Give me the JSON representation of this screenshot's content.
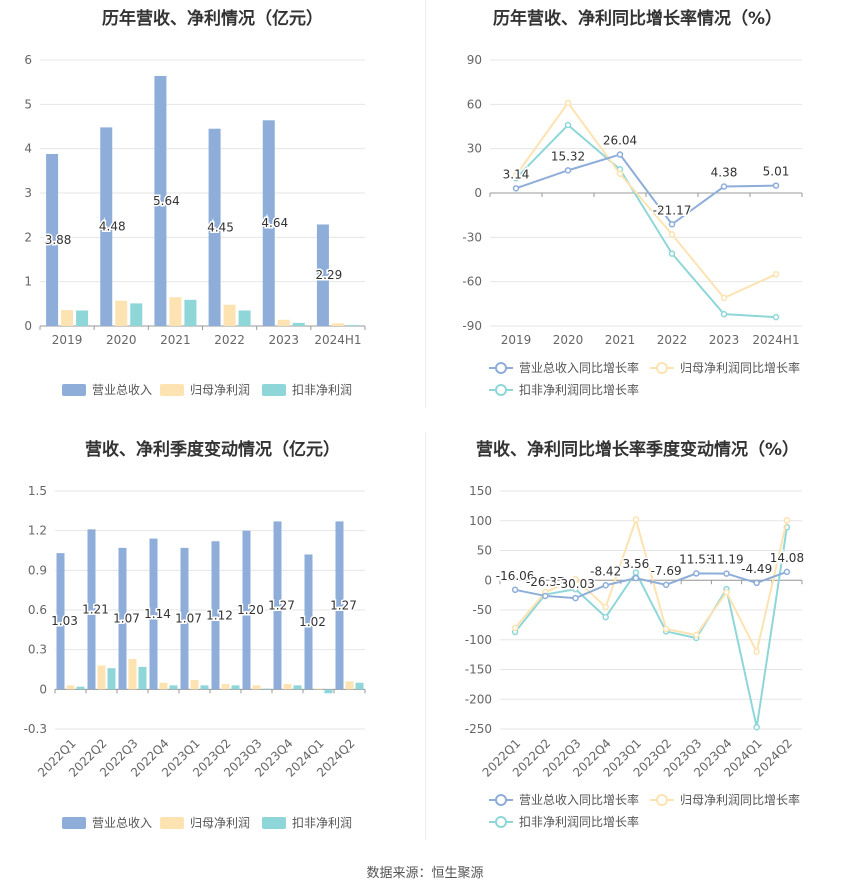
{
  "source_text": "数据来源：恒生聚源",
  "chart_data": [
    {
      "id": "annual-revenue-profit",
      "type": "bar",
      "title": "历年营收、净利情况（亿元）",
      "categories": [
        "2019",
        "2020",
        "2021",
        "2022",
        "2023",
        "2024H1"
      ],
      "series": [
        {
          "name": "营业总收入",
          "color": "#8eadd9",
          "values": [
            3.88,
            4.48,
            5.64,
            4.45,
            4.64,
            2.29
          ],
          "labels": [
            "3.88",
            "4.48",
            "5.64",
            "4.45",
            "4.64",
            "2.29"
          ]
        },
        {
          "name": "归母净利润",
          "color": "#fde3b1",
          "values": [
            0.36,
            0.57,
            0.65,
            0.48,
            0.14,
            0.06
          ]
        },
        {
          "name": "扣非净利润",
          "color": "#8fd6d9",
          "values": [
            0.35,
            0.51,
            0.59,
            0.35,
            0.07,
            0.02
          ]
        }
      ],
      "yticks": [
        "6",
        "5",
        "4",
        "3",
        "2",
        "1",
        "0"
      ],
      "ylim": [
        0,
        6
      ]
    },
    {
      "id": "annual-yoy-growth",
      "type": "line",
      "title": "历年营收、净利同比增长率情况（%）",
      "categories": [
        "2019",
        "2020",
        "2021",
        "2022",
        "2023",
        "2024H1"
      ],
      "series": [
        {
          "name": "营业总收入同比增长率",
          "color": "#8eadd9",
          "values": [
            3.14,
            15.32,
            26.04,
            -21.17,
            4.38,
            5.01
          ],
          "labels": [
            "3.14",
            "15.32",
            "26.04",
            "-21.17",
            "4.38",
            "5.01"
          ]
        },
        {
          "name": "归母净利润同比增长率",
          "color": "#fde3b1",
          "values": [
            12,
            61,
            13,
            -28,
            -71,
            -55
          ]
        },
        {
          "name": "扣非净利润同比增长率",
          "color": "#8fd6d9",
          "values": [
            10,
            46,
            16,
            -41,
            -82,
            -84
          ]
        }
      ],
      "yticks": [
        "90",
        "60",
        "30",
        "0",
        "-30",
        "-60",
        "-90"
      ],
      "ylim": [
        -90,
        90
      ]
    },
    {
      "id": "quarterly-revenue-profit",
      "type": "bar",
      "title": "营收、净利季度变动情况（亿元）",
      "categories": [
        "2022Q1",
        "2022Q2",
        "2022Q3",
        "2022Q4",
        "2023Q1",
        "2023Q2",
        "2023Q3",
        "2023Q4",
        "2024Q1",
        "2024Q2"
      ],
      "series": [
        {
          "name": "营业总收入",
          "color": "#8eadd9",
          "values": [
            1.03,
            1.21,
            1.07,
            1.14,
            1.07,
            1.12,
            1.2,
            1.27,
            1.02,
            1.27
          ],
          "labels": [
            "1.03",
            "1.21",
            "1.07",
            "1.14",
            "1.07",
            "1.12",
            "1.20",
            "1.27",
            "1.02",
            "1.27"
          ]
        },
        {
          "name": "归母净利润",
          "color": "#fde3b1",
          "values": [
            0.03,
            0.18,
            0.23,
            0.05,
            0.07,
            0.04,
            0.03,
            0.04,
            0.005,
            0.06
          ]
        },
        {
          "name": "扣非净利润",
          "color": "#8fd6d9",
          "values": [
            0.02,
            0.16,
            0.17,
            0.03,
            0.03,
            0.03,
            0.005,
            0.03,
            -0.03,
            0.05
          ]
        }
      ],
      "yticks": [
        "1.5",
        "1.2",
        "0.9",
        "0.6",
        "0.3",
        "0",
        "-0.3"
      ],
      "ylim": [
        -0.3,
        1.5
      ]
    },
    {
      "id": "quarterly-yoy-growth",
      "type": "line",
      "title": "营收、净利同比增长率季度变动情况（%）",
      "categories": [
        "2022Q1",
        "2022Q2",
        "2022Q3",
        "2022Q4",
        "2023Q1",
        "2023Q2",
        "2023Q3",
        "2023Q4",
        "2024Q1",
        "2024Q2"
      ],
      "series": [
        {
          "name": "营业总收入同比增长率",
          "color": "#8eadd9",
          "values": [
            -16.06,
            -26.37,
            -30.03,
            -8.42,
            3.56,
            -7.69,
            11.53,
            11.19,
            -4.49,
            14.08
          ],
          "labels": [
            "-16.06",
            "-26.37",
            "-30.03",
            "-8.42",
            "3.56",
            "-7.69",
            "11.53",
            "11.19",
            "-4.49",
            "14.08"
          ]
        },
        {
          "name": "归母净利润同比增长率",
          "color": "#fde3b1",
          "values": [
            -80,
            -20,
            2,
            -45,
            102,
            -82,
            -92,
            -20,
            -120,
            101
          ]
        },
        {
          "name": "扣非净利润同比增长率",
          "color": "#8fd6d9",
          "values": [
            -87,
            -24,
            -15,
            -62,
            13,
            -86,
            -97,
            -15,
            -247,
            89
          ]
        }
      ],
      "yticks": [
        "150",
        "100",
        "50",
        "0",
        "-50",
        "-100",
        "-150",
        "-200",
        "-250"
      ],
      "ylim": [
        -250,
        150
      ]
    }
  ]
}
